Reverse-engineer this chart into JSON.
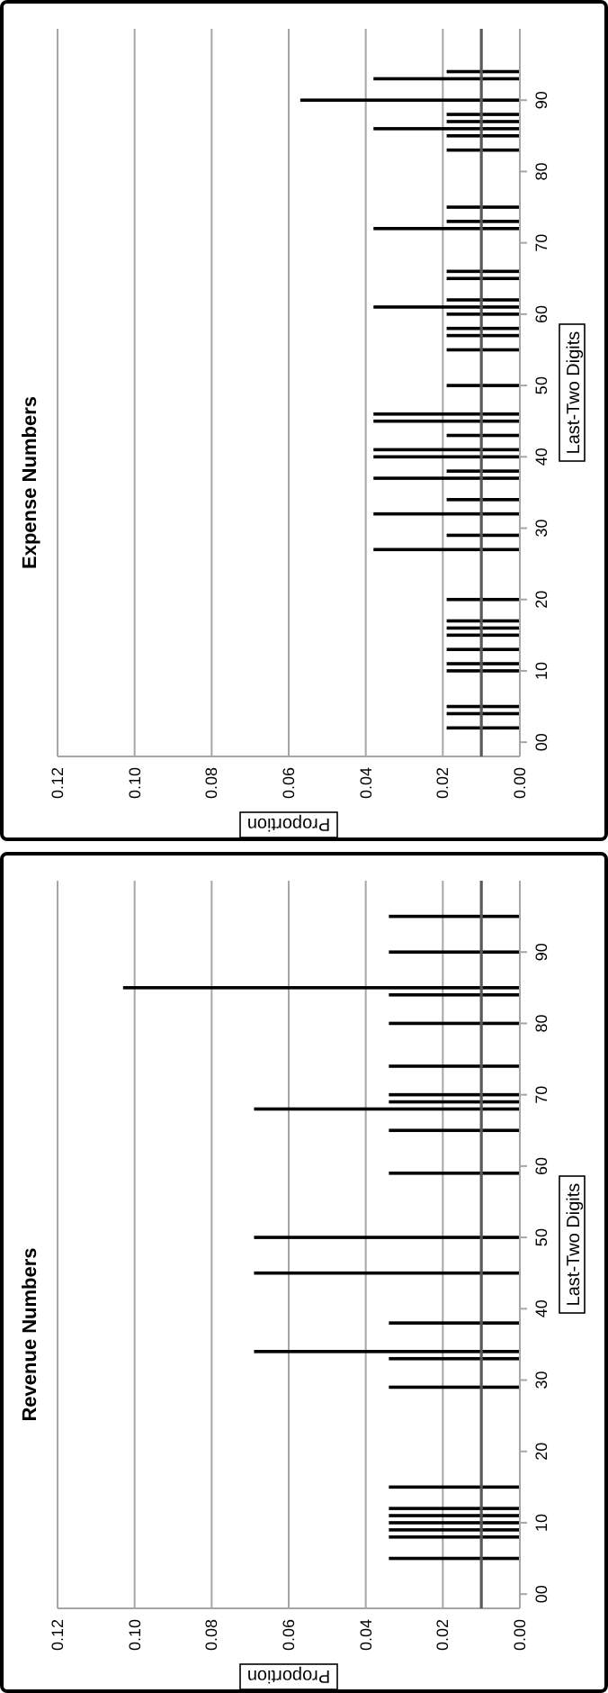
{
  "chart_data": [
    {
      "type": "bar",
      "orientation": "horizontal",
      "title": "Revenue Numbers",
      "xlabel": "Proportion",
      "ylabel": "Last-Two Digits",
      "x": [
        5,
        8,
        9,
        10,
        11,
        12,
        15,
        29,
        33,
        34,
        38,
        45,
        50,
        59,
        65,
        68,
        69,
        70,
        74,
        80,
        84,
        85,
        90,
        95
      ],
      "values": [
        0.034,
        0.034,
        0.034,
        0.034,
        0.034,
        0.034,
        0.034,
        0.034,
        0.034,
        0.069,
        0.034,
        0.069,
        0.069,
        0.034,
        0.034,
        0.069,
        0.034,
        0.034,
        0.034,
        0.034,
        0.034,
        0.103,
        0.034,
        0.034
      ],
      "color": "#000000",
      "ylim": [
        -2,
        100
      ],
      "yticks": [
        {
          "value": 0,
          "label": "00"
        },
        {
          "value": 10,
          "label": "10"
        },
        {
          "value": 20,
          "label": "20"
        },
        {
          "value": 30,
          "label": "30"
        },
        {
          "value": 40,
          "label": "40"
        },
        {
          "value": 50,
          "label": "50"
        },
        {
          "value": 60,
          "label": "60"
        },
        {
          "value": 70,
          "label": "70"
        },
        {
          "value": 80,
          "label": "80"
        },
        {
          "value": 90,
          "label": "90"
        }
      ],
      "xlim": [
        0.12,
        0
      ],
      "xticks": [
        {
          "value": 0.12,
          "label": "0.12"
        },
        {
          "value": 0.1,
          "label": "0.10"
        },
        {
          "value": 0.08,
          "label": "0.08"
        },
        {
          "value": 0.06,
          "label": "0.06"
        },
        {
          "value": 0.04,
          "label": "0.04"
        },
        {
          "value": 0.02,
          "label": "0.02"
        },
        {
          "value": 0,
          "label": "0.00"
        }
      ],
      "grid": "x",
      "ref_lines": [
        {
          "axis": "x",
          "value": 0.01,
          "color": "#595959"
        }
      ]
    },
    {
      "type": "bar",
      "orientation": "horizontal",
      "title": "Expense Numbers",
      "xlabel": "Proportion",
      "ylabel": "Last-Two Digits",
      "x": [
        2,
        4,
        5,
        10,
        11,
        13,
        15,
        16,
        17,
        20,
        27,
        29,
        32,
        34,
        37,
        38,
        40,
        41,
        43,
        45,
        46,
        50,
        55,
        57,
        58,
        60,
        61,
        62,
        65,
        66,
        72,
        73,
        75,
        83,
        85,
        86,
        87,
        88,
        90,
        93,
        94
      ],
      "values": [
        0.019,
        0.019,
        0.019,
        0.019,
        0.019,
        0.019,
        0.019,
        0.019,
        0.019,
        0.019,
        0.038,
        0.019,
        0.038,
        0.019,
        0.038,
        0.019,
        0.038,
        0.038,
        0.019,
        0.038,
        0.038,
        0.019,
        0.019,
        0.019,
        0.019,
        0.019,
        0.038,
        0.019,
        0.019,
        0.019,
        0.038,
        0.019,
        0.019,
        0.019,
        0.019,
        0.038,
        0.019,
        0.019,
        0.057,
        0.038,
        0.019
      ],
      "color": "#000000",
      "ylim": [
        -2,
        100
      ],
      "yticks": [
        {
          "value": 0,
          "label": "00"
        },
        {
          "value": 10,
          "label": "10"
        },
        {
          "value": 20,
          "label": "20"
        },
        {
          "value": 30,
          "label": "30"
        },
        {
          "value": 40,
          "label": "40"
        },
        {
          "value": 50,
          "label": "50"
        },
        {
          "value": 60,
          "label": "60"
        },
        {
          "value": 70,
          "label": "70"
        },
        {
          "value": 80,
          "label": "80"
        },
        {
          "value": 90,
          "label": "90"
        }
      ],
      "xlim": [
        0.12,
        0
      ],
      "xticks": [
        {
          "value": 0.12,
          "label": "0.12"
        },
        {
          "value": 0.1,
          "label": "0.10"
        },
        {
          "value": 0.08,
          "label": "0.08"
        },
        {
          "value": 0.06,
          "label": "0.06"
        },
        {
          "value": 0.04,
          "label": "0.04"
        },
        {
          "value": 0.02,
          "label": "0.02"
        },
        {
          "value": 0,
          "label": "0.00"
        }
      ],
      "grid": "x",
      "ref_lines": [
        {
          "axis": "x",
          "value": 0.01,
          "color": "#595959"
        }
      ]
    }
  ]
}
